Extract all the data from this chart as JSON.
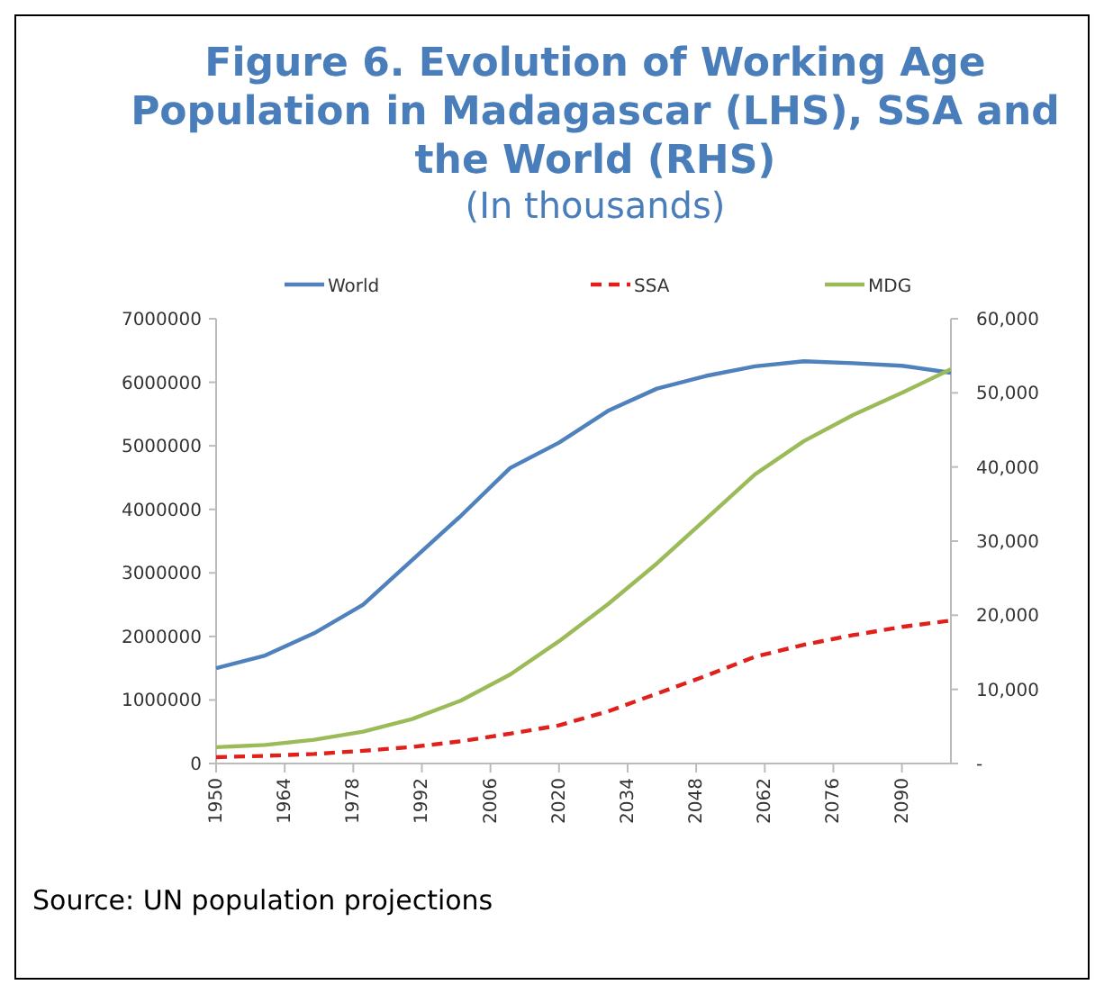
{
  "chart_data": {
    "type": "line",
    "title": "Figure 6. Evolution of Working Age Population in Madagascar (LHS), SSA and the World (RHS)",
    "subtitle": "(In thousands)",
    "x": [
      1950,
      1960,
      1970,
      1980,
      1990,
      2000,
      2010,
      2020,
      2030,
      2040,
      2050,
      2060,
      2070,
      2080,
      2090,
      2100
    ],
    "xlim": [
      1950,
      2100
    ],
    "xticks": [
      1950,
      1964,
      1978,
      1992,
      2006,
      2020,
      2034,
      2048,
      2062,
      2076,
      2090
    ],
    "ylim": [
      0,
      7000000
    ],
    "yticks": [
      0,
      1000000,
      2000000,
      3000000,
      4000000,
      5000000,
      6000000,
      7000000
    ],
    "y2lim": [
      0,
      60000
    ],
    "y2ticks": [
      {
        "value": 0,
        "label": "-"
      },
      {
        "value": 10000,
        "label": "10,000"
      },
      {
        "value": 20000,
        "label": "20,000"
      },
      {
        "value": 30000,
        "label": "30,000"
      },
      {
        "value": 40000,
        "label": "40,000"
      },
      {
        "value": 50000,
        "label": "50,000"
      },
      {
        "value": 60000,
        "label": "60,000"
      }
    ],
    "series": [
      {
        "name": "World",
        "color": "#4f81bd",
        "line_style": "solid",
        "values": [
          1500000,
          1700000,
          2050000,
          2500000,
          3200000,
          3900000,
          4650000,
          5050000,
          5550000,
          5900000,
          6100000,
          6250000,
          6330000,
          6300000,
          6260000,
          6150000
        ]
      },
      {
        "name": "SSA",
        "color": "#e0201b",
        "line_style": "dashed",
        "values": [
          100000,
          120000,
          150000,
          200000,
          260000,
          350000,
          470000,
          600000,
          820000,
          1100000,
          1380000,
          1680000,
          1870000,
          2020000,
          2150000,
          2250000
        ]
      },
      {
        "name": "MDG",
        "color": "#9bbb59",
        "line_style": "solid",
        "axis": "y2",
        "values": [
          2200,
          2500,
          3200,
          4300,
          6000,
          8500,
          12000,
          16500,
          21500,
          27000,
          33000,
          39000,
          43500,
          47000,
          50000,
          53200
        ]
      }
    ],
    "legend": "top",
    "grid": false,
    "annotations": [
      "Source: UN population projections"
    ]
  }
}
